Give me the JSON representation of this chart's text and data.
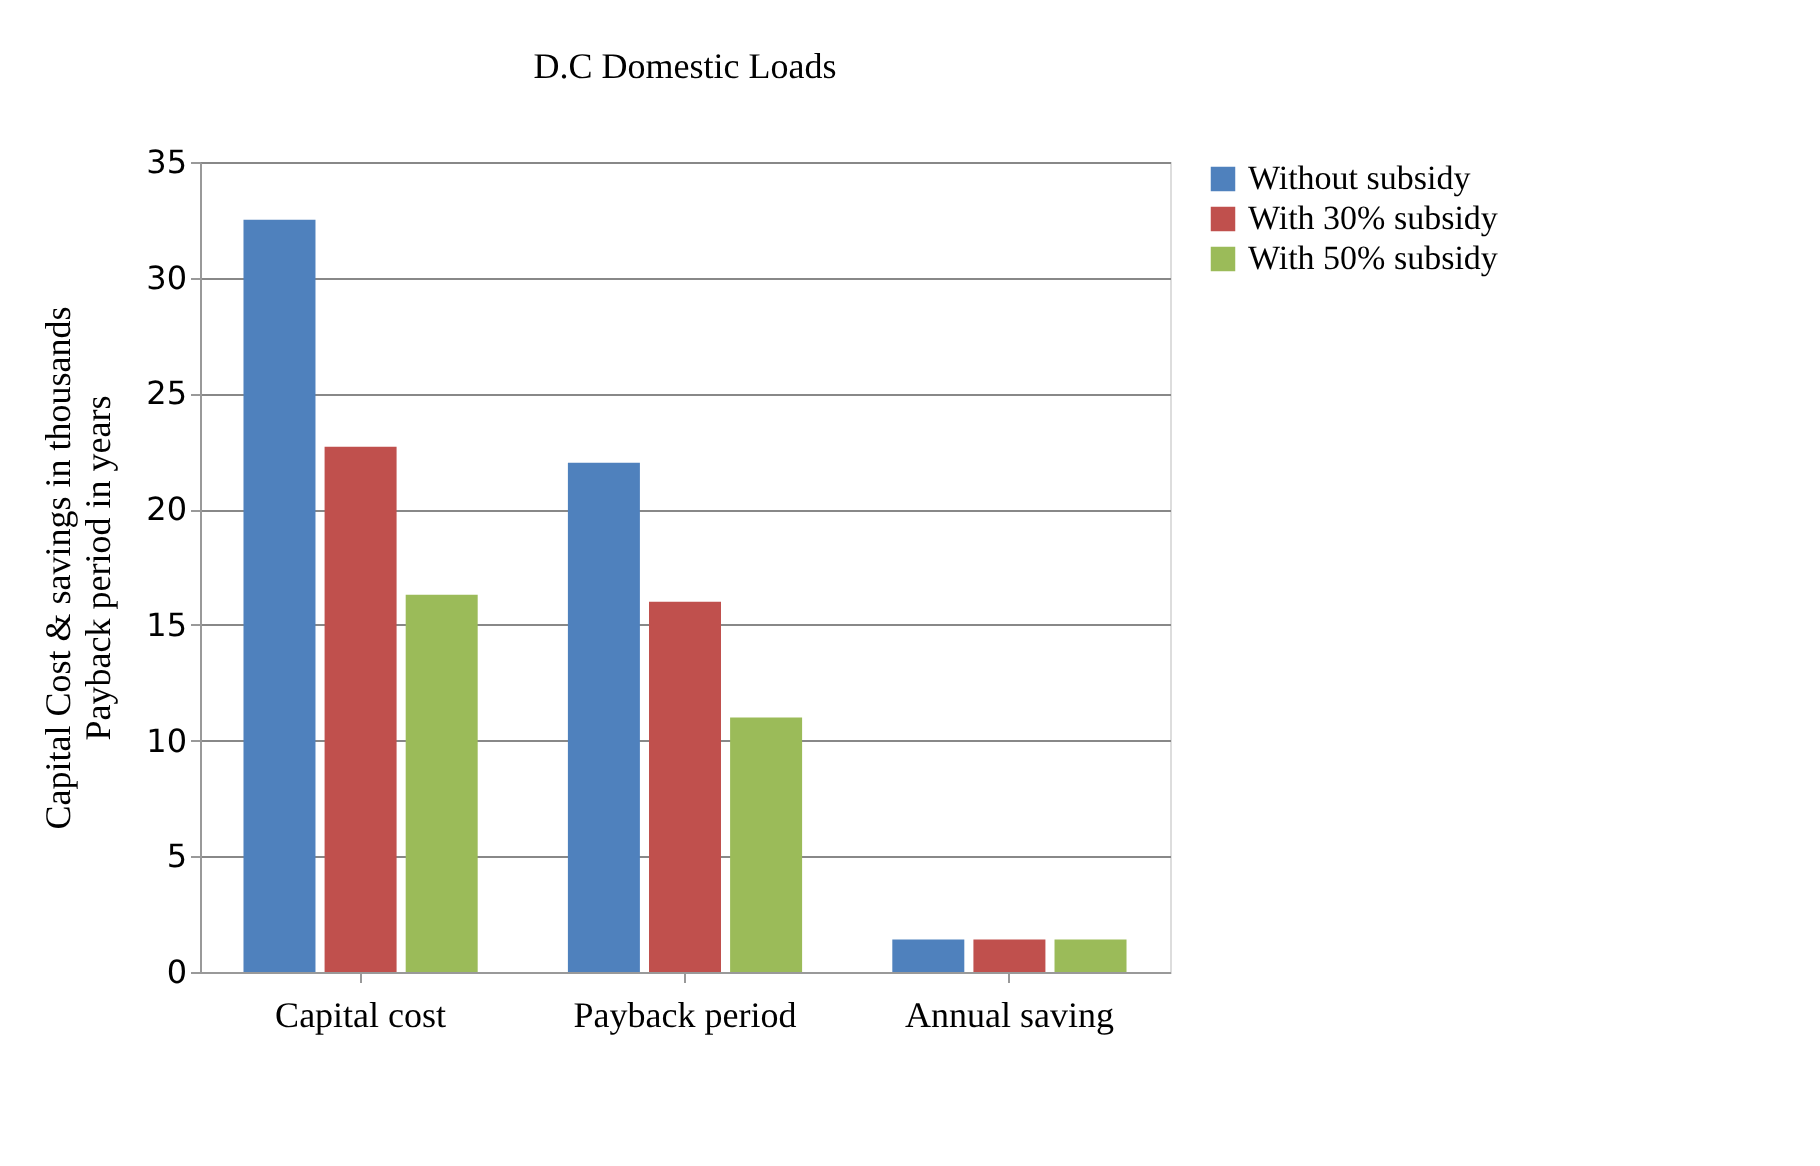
{
  "chart_data": {
    "type": "bar",
    "title": "D.C  Domestic Loads",
    "ylabel": "Capital Cost & savings in thousands\nPayback period in years",
    "categories": [
      "Capital cost",
      "Payback period",
      "Annual saving"
    ],
    "series": [
      {
        "name": "Without subsidy",
        "color": "#4f81bd",
        "values": [
          32.5,
          22.0,
          1.4
        ]
      },
      {
        "name": "With 30% subsidy",
        "color": "#c0504d",
        "values": [
          22.7,
          16.0,
          1.4
        ]
      },
      {
        "name": "With 50% subsidy",
        "color": "#9bbb59",
        "values": [
          16.3,
          11.0,
          1.4
        ]
      }
    ],
    "ylim": [
      0,
      35
    ],
    "yticks": [
      0,
      5,
      10,
      15,
      20,
      25,
      30,
      35
    ],
    "grid": "y",
    "legend": "right"
  }
}
